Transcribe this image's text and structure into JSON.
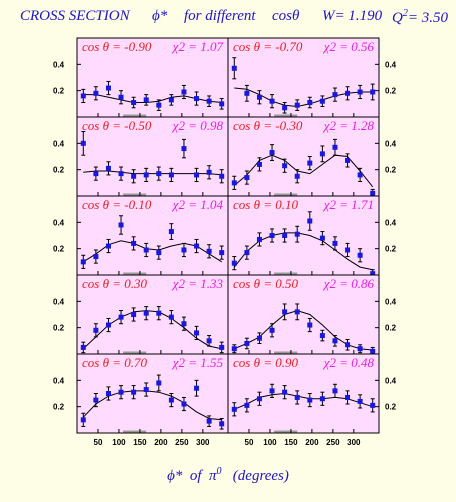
{
  "header": {
    "label": "CROSS SECTION",
    "phi": "ϕ*",
    "for_different": "for different",
    "cos_theta": "cosθ",
    "w_label": "W= 1.190",
    "q_label": "Q",
    "q_exp": "2",
    "q_value": "= 3.50"
  },
  "x_axis_title": {
    "phi": "ϕ*",
    "of": "of",
    "pi": "π",
    "pi_exp": "0",
    "units": "(degrees)"
  },
  "colors": {
    "background": "#fefee6",
    "panel": "#ffdcff",
    "title_blue": "#1f14c8",
    "label_red": "#e61e1e",
    "label_magenta": "#e61ee6",
    "marker_blue": "#1818e0",
    "baseline_gray": "#9a9a9a"
  },
  "chart_data": {
    "type": "scatter",
    "xlim": [
      0,
      360
    ],
    "ylim": [
      0,
      0.6
    ],
    "x_ticks": [
      50,
      100,
      150,
      200,
      250,
      300
    ],
    "y_ticks": [
      0.2,
      0.4
    ],
    "grid": false,
    "panels": [
      {
        "cos_label": "cos θ = -0.90",
        "chi_label": "χ2 = 1.07",
        "x": [
          15,
          45,
          75,
          105,
          135,
          165,
          195,
          225,
          255,
          285,
          315,
          345
        ],
        "y": [
          0.16,
          0.18,
          0.22,
          0.15,
          0.11,
          0.13,
          0.09,
          0.13,
          0.19,
          0.14,
          0.12,
          0.1
        ],
        "err": [
          0.05,
          0.05,
          0.05,
          0.05,
          0.04,
          0.04,
          0.04,
          0.04,
          0.05,
          0.05,
          0.04,
          0.04
        ],
        "fit": [
          0.17,
          0.17,
          0.15,
          0.13,
          0.11,
          0.11,
          0.12,
          0.15,
          0.16,
          0.14,
          0.12,
          0.11
        ]
      },
      {
        "cos_label": "cos θ = -0.70",
        "chi_label": "χ2 = 0.56",
        "x": [
          15,
          45,
          75,
          105,
          135,
          165,
          195,
          225,
          255,
          285,
          315,
          345
        ],
        "y": [
          0.37,
          0.18,
          0.15,
          0.12,
          0.07,
          0.09,
          0.11,
          0.12,
          0.17,
          0.18,
          0.19,
          0.19
        ],
        "err": [
          0.08,
          0.06,
          0.05,
          0.05,
          0.04,
          0.04,
          0.04,
          0.04,
          0.05,
          0.05,
          0.05,
          0.06
        ],
        "fit": [
          0.22,
          0.21,
          0.17,
          0.12,
          0.09,
          0.08,
          0.1,
          0.13,
          0.16,
          0.18,
          0.19,
          0.19
        ]
      },
      {
        "cos_label": "cos θ = -0.50",
        "chi_label": "χ2 = 0.98",
        "x": [
          15,
          45,
          75,
          105,
          135,
          165,
          195,
          225,
          255,
          285,
          315,
          345
        ],
        "y": [
          0.4,
          0.17,
          0.21,
          0.17,
          0.15,
          0.16,
          0.17,
          0.16,
          0.36,
          0.16,
          0.18,
          0.15
        ],
        "err": [
          0.09,
          0.05,
          0.05,
          0.05,
          0.05,
          0.05,
          0.05,
          0.05,
          0.07,
          0.05,
          0.05,
          0.05
        ],
        "fit": [
          0.18,
          0.19,
          0.19,
          0.18,
          0.17,
          0.17,
          0.17,
          0.17,
          0.17,
          0.17,
          0.17,
          0.16
        ]
      },
      {
        "cos_label": "cos θ = -0.30",
        "chi_label": "χ2 = 1.28",
        "x": [
          15,
          45,
          75,
          105,
          135,
          165,
          195,
          225,
          255,
          285,
          315,
          345
        ],
        "y": [
          0.1,
          0.14,
          0.24,
          0.33,
          0.23,
          0.15,
          0.25,
          0.32,
          0.37,
          0.27,
          0.16,
          0.02
        ],
        "err": [
          0.05,
          0.05,
          0.05,
          0.06,
          0.05,
          0.05,
          0.05,
          0.06,
          0.06,
          0.05,
          0.05,
          0.03
        ],
        "fit": [
          0.08,
          0.16,
          0.27,
          0.31,
          0.27,
          0.19,
          0.17,
          0.24,
          0.31,
          0.3,
          0.19,
          0.07
        ]
      },
      {
        "cos_label": "cos θ = -0.10",
        "chi_label": "χ2 = 1.04",
        "x": [
          15,
          45,
          75,
          105,
          135,
          165,
          195,
          225,
          255,
          285,
          315,
          345
        ],
        "y": [
          0.1,
          0.14,
          0.22,
          0.38,
          0.24,
          0.19,
          0.17,
          0.33,
          0.19,
          0.22,
          0.18,
          0.17
        ],
        "err": [
          0.05,
          0.05,
          0.05,
          0.07,
          0.05,
          0.05,
          0.05,
          0.06,
          0.05,
          0.05,
          0.05,
          0.05
        ],
        "fit": [
          0.1,
          0.16,
          0.23,
          0.26,
          0.24,
          0.2,
          0.19,
          0.22,
          0.24,
          0.22,
          0.16,
          0.1
        ]
      },
      {
        "cos_label": "cos θ = 0.10",
        "chi_label": "χ2 = 1.71",
        "x": [
          15,
          45,
          75,
          105,
          135,
          165,
          195,
          225,
          255,
          285,
          315,
          345
        ],
        "y": [
          0.09,
          0.17,
          0.27,
          0.3,
          0.3,
          0.31,
          0.41,
          0.28,
          0.24,
          0.19,
          0.15,
          0.01
        ],
        "err": [
          0.05,
          0.05,
          0.05,
          0.05,
          0.05,
          0.06,
          0.07,
          0.05,
          0.05,
          0.05,
          0.05,
          0.03
        ],
        "fit": [
          0.06,
          0.18,
          0.26,
          0.3,
          0.32,
          0.32,
          0.3,
          0.26,
          0.19,
          0.12,
          0.06,
          0.04
        ]
      },
      {
        "cos_label": "cos θ = 0.30",
        "chi_label": "χ2 = 1.33",
        "x": [
          15,
          45,
          75,
          105,
          135,
          165,
          195,
          225,
          255,
          285,
          315,
          345
        ],
        "y": [
          0.05,
          0.18,
          0.22,
          0.28,
          0.3,
          0.31,
          0.31,
          0.28,
          0.23,
          0.16,
          0.1,
          0.05
        ],
        "err": [
          0.04,
          0.05,
          0.05,
          0.05,
          0.05,
          0.05,
          0.05,
          0.05,
          0.05,
          0.05,
          0.04,
          0.04
        ],
        "fit": [
          0.04,
          0.13,
          0.22,
          0.28,
          0.32,
          0.33,
          0.32,
          0.27,
          0.2,
          0.12,
          0.06,
          0.04
        ]
      },
      {
        "cos_label": "cos θ = 0.50",
        "chi_label": "χ2 = 0.86",
        "x": [
          15,
          45,
          75,
          105,
          135,
          165,
          195,
          225,
          255,
          285,
          315,
          345
        ],
        "y": [
          0.04,
          0.08,
          0.12,
          0.18,
          0.32,
          0.32,
          0.22,
          0.14,
          0.1,
          0.07,
          0.04,
          0.02
        ],
        "err": [
          0.03,
          0.04,
          0.04,
          0.05,
          0.06,
          0.06,
          0.05,
          0.04,
          0.04,
          0.04,
          0.03,
          0.03
        ],
        "fit": [
          0.04,
          0.08,
          0.13,
          0.22,
          0.3,
          0.33,
          0.3,
          0.22,
          0.13,
          0.07,
          0.04,
          0.03
        ]
      },
      {
        "cos_label": "cos θ = 0.70",
        "chi_label": "χ2 = 1.55",
        "x": [
          15,
          45,
          75,
          105,
          135,
          165,
          195,
          225,
          255,
          285,
          315,
          345
        ],
        "y": [
          0.1,
          0.25,
          0.3,
          0.31,
          0.31,
          0.33,
          0.38,
          0.25,
          0.22,
          0.34,
          0.09,
          0.07
        ],
        "err": [
          0.05,
          0.05,
          0.05,
          0.05,
          0.05,
          0.05,
          0.06,
          0.05,
          0.05,
          0.06,
          0.04,
          0.04
        ],
        "fit": [
          0.12,
          0.22,
          0.28,
          0.31,
          0.32,
          0.32,
          0.31,
          0.28,
          0.23,
          0.16,
          0.11,
          0.1
        ]
      },
      {
        "cos_label": "cos θ = 0.90",
        "chi_label": "χ2 = 0.48",
        "x": [
          15,
          45,
          75,
          105,
          135,
          165,
          195,
          225,
          255,
          285,
          315,
          345
        ],
        "y": [
          0.18,
          0.21,
          0.26,
          0.32,
          0.31,
          0.27,
          0.25,
          0.26,
          0.32,
          0.27,
          0.24,
          0.21
        ],
        "err": [
          0.05,
          0.05,
          0.05,
          0.05,
          0.05,
          0.05,
          0.05,
          0.05,
          0.05,
          0.05,
          0.05,
          0.05
        ],
        "fit": [
          0.18,
          0.22,
          0.27,
          0.29,
          0.3,
          0.28,
          0.26,
          0.26,
          0.27,
          0.26,
          0.23,
          0.2
        ]
      }
    ]
  }
}
